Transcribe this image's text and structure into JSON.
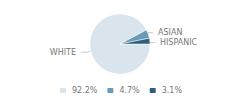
{
  "chart_data": {
    "type": "pie",
    "categories": [
      "WHITE",
      "ASIAN",
      "HISPANIC"
    ],
    "values": [
      92.2,
      4.7,
      3.1
    ],
    "value_labels": [
      "92.2%",
      "4.7%",
      "3.1%"
    ],
    "colors": [
      "#d9e4ed",
      "#6b9ab8",
      "#2d5f7d"
    ],
    "legend": "bottom"
  }
}
